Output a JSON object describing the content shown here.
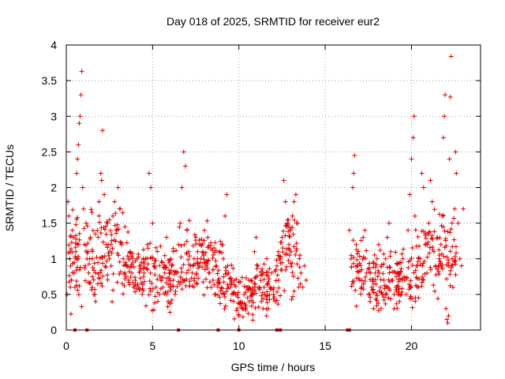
{
  "chart_data": {
    "type": "scatter",
    "title": "Day 018 of 2025, SRMTID for receiver eur2",
    "xlabel": "GPS time / hours",
    "ylabel": "SRMTID / TECUs",
    "xlim": [
      0,
      24
    ],
    "ylim": [
      0,
      4
    ],
    "xticks": [
      0,
      5,
      10,
      15,
      20
    ],
    "xtick_labels": [
      "0",
      "5",
      "10",
      "15",
      "20"
    ],
    "yticks": [
      0,
      0.5,
      1,
      1.5,
      2,
      2.5,
      3,
      3.5,
      4
    ],
    "ytick_labels": [
      "0",
      "0.5",
      "1",
      "1.5",
      "2",
      "2.5",
      "3",
      "3.5",
      "4"
    ],
    "grid": true,
    "marker": "+",
    "series": [
      {
        "name": "SRMTID",
        "color": "#e00000",
        "points": [
          [
            0.05,
            0.5
          ],
          [
            0.1,
            1.8
          ],
          [
            0.15,
            1.6
          ],
          [
            0.2,
            1.0
          ],
          [
            0.25,
            0.9
          ],
          [
            0.3,
            0.7
          ],
          [
            0.35,
            1.4
          ],
          [
            0.4,
            1.3
          ],
          [
            0.45,
            0.8
          ],
          [
            0.5,
            0.6
          ],
          [
            0.55,
            1.1
          ],
          [
            0.6,
            2.2
          ],
          [
            0.65,
            2.4
          ],
          [
            0.7,
            2.6
          ],
          [
            0.75,
            2.9
          ],
          [
            0.8,
            3.0
          ],
          [
            0.85,
            3.3
          ],
          [
            0.9,
            3.63
          ],
          [
            0.95,
            2.0
          ],
          [
            1.0,
            1.7
          ],
          [
            1.05,
            1.2
          ],
          [
            1.1,
            0.9
          ],
          [
            1.15,
            1.5
          ],
          [
            1.2,
            1.0
          ],
          [
            1.3,
            0.8
          ],
          [
            1.4,
            1.3
          ],
          [
            1.5,
            0.6
          ],
          [
            1.6,
            0.5
          ],
          [
            1.7,
            0.4
          ],
          [
            1.8,
            1.4
          ],
          [
            1.9,
            1.8
          ],
          [
            2.0,
            2.2
          ],
          [
            2.05,
            2.1
          ],
          [
            2.1,
            2.8
          ],
          [
            2.2,
            1.9
          ],
          [
            2.3,
            1.2
          ],
          [
            2.4,
            1.5
          ],
          [
            2.5,
            1.0
          ],
          [
            2.6,
            0.9
          ],
          [
            2.7,
            1.6
          ],
          [
            2.8,
            1.8
          ],
          [
            2.9,
            1.4
          ],
          [
            3.0,
            2.0
          ],
          [
            3.1,
            1.7
          ],
          [
            3.2,
            1.2
          ],
          [
            3.3,
            1.0
          ],
          [
            3.4,
            0.8
          ],
          [
            3.5,
            0.9
          ],
          [
            3.6,
            0.7
          ],
          [
            3.7,
            1.1
          ],
          [
            3.8,
            0.8
          ],
          [
            3.9,
            0.6
          ],
          [
            4.0,
            0.7
          ],
          [
            4.1,
            1.0
          ],
          [
            4.2,
            0.6
          ],
          [
            4.3,
            0.9
          ],
          [
            4.4,
            0.5
          ],
          [
            4.5,
            0.8
          ],
          [
            4.6,
            1.0
          ],
          [
            4.7,
            1.2
          ],
          [
            4.8,
            2.2
          ],
          [
            4.9,
            2.0
          ],
          [
            5.0,
            1.5
          ],
          [
            5.1,
            0.9
          ],
          [
            5.2,
            0.6
          ],
          [
            5.3,
            0.4
          ],
          [
            5.4,
            0.5
          ],
          [
            5.5,
            0.7
          ],
          [
            5.6,
            0.6
          ],
          [
            5.7,
            0.8
          ],
          [
            5.8,
            0.5
          ],
          [
            5.9,
            0.4
          ],
          [
            6.0,
            0.6
          ],
          [
            6.1,
            0.9
          ],
          [
            6.2,
            0.7
          ],
          [
            6.3,
            0.5
          ],
          [
            6.4,
            0.8
          ],
          [
            6.5,
            1.2
          ],
          [
            6.6,
            1.5
          ],
          [
            6.7,
            2.0
          ],
          [
            6.8,
            2.5
          ],
          [
            6.9,
            2.3
          ],
          [
            7.0,
            1.4
          ],
          [
            7.1,
            1.1
          ],
          [
            7.2,
            0.9
          ],
          [
            7.3,
            0.8
          ],
          [
            7.4,
            1.0
          ],
          [
            7.5,
            1.3
          ],
          [
            7.6,
            1.0
          ],
          [
            7.7,
            0.9
          ],
          [
            7.8,
            1.2
          ],
          [
            7.9,
            1.1
          ],
          [
            8.0,
            1.4
          ],
          [
            8.1,
            0.9
          ],
          [
            8.2,
            1.3
          ],
          [
            8.3,
            0.8
          ],
          [
            8.4,
            0.6
          ],
          [
            8.5,
            0.7
          ],
          [
            8.6,
            0.5
          ],
          [
            8.7,
            0.9
          ],
          [
            8.8,
            0.7
          ],
          [
            8.9,
            1.1
          ],
          [
            9.0,
            1.2
          ],
          [
            9.1,
            1.0
          ],
          [
            9.2,
            1.6
          ],
          [
            9.3,
            1.9
          ],
          [
            9.4,
            0.8
          ],
          [
            9.5,
            0.6
          ],
          [
            9.6,
            0.5
          ],
          [
            9.7,
            0.4
          ],
          [
            9.8,
            0.5
          ],
          [
            9.9,
            0.3
          ],
          [
            10.0,
            0.2
          ],
          [
            10.1,
            0.4
          ],
          [
            10.2,
            0.3
          ],
          [
            10.3,
            0.5
          ],
          [
            10.4,
            0.35
          ],
          [
            10.5,
            0.6
          ],
          [
            10.6,
            0.4
          ],
          [
            10.7,
            0.7
          ],
          [
            10.8,
            0.5
          ],
          [
            10.9,
            1.1
          ],
          [
            11.0,
            1.3
          ],
          [
            11.1,
            0.9
          ],
          [
            11.2,
            0.6
          ],
          [
            11.3,
            0.4
          ],
          [
            11.4,
            0.3
          ],
          [
            11.5,
            0.5
          ],
          [
            11.6,
            0.2
          ],
          [
            11.7,
            0.3
          ],
          [
            11.8,
            0.6
          ],
          [
            11.9,
            0.8
          ],
          [
            12.0,
            0.5
          ],
          [
            12.1,
            0.4
          ],
          [
            12.2,
            0.9
          ],
          [
            12.3,
            0.7
          ],
          [
            12.4,
            1.0
          ],
          [
            12.5,
            1.3
          ],
          [
            12.6,
            2.1
          ],
          [
            12.7,
            1.8
          ],
          [
            12.8,
            1.5
          ],
          [
            12.9,
            1.2
          ],
          [
            13.0,
            1.4
          ],
          [
            13.1,
            1.6
          ],
          [
            13.2,
            1.8
          ],
          [
            13.3,
            1.9
          ],
          [
            13.4,
            1.5
          ],
          [
            13.5,
            1.0
          ],
          [
            13.6,
            0.8
          ],
          [
            13.7,
            0.6
          ],
          [
            13.8,
            0.9
          ],
          [
            13.9,
            0.7
          ],
          [
            16.4,
            1.4
          ],
          [
            16.5,
            1.0
          ],
          [
            16.6,
            2.0
          ],
          [
            16.65,
            2.2
          ],
          [
            16.7,
            2.45
          ],
          [
            16.8,
            1.2
          ],
          [
            16.9,
            0.9
          ],
          [
            17.0,
            0.7
          ],
          [
            17.1,
            0.6
          ],
          [
            17.2,
            1.3
          ],
          [
            17.3,
            1.4
          ],
          [
            17.4,
            0.8
          ],
          [
            17.5,
            0.5
          ],
          [
            17.6,
            0.4
          ],
          [
            17.7,
            0.6
          ],
          [
            17.8,
            0.3
          ],
          [
            17.9,
            0.8
          ],
          [
            18.0,
            1.0
          ],
          [
            18.1,
            1.2
          ],
          [
            18.2,
            0.6
          ],
          [
            18.3,
            0.5
          ],
          [
            18.4,
            0.7
          ],
          [
            18.5,
            1.0
          ],
          [
            18.6,
            1.3
          ],
          [
            18.7,
            1.5
          ],
          [
            18.8,
            1.1
          ],
          [
            18.9,
            0.7
          ],
          [
            19.0,
            0.5
          ],
          [
            19.1,
            0.6
          ],
          [
            19.2,
            0.8
          ],
          [
            19.3,
            0.4
          ],
          [
            19.4,
            0.5
          ],
          [
            19.5,
            1.0
          ],
          [
            19.6,
            0.7
          ],
          [
            19.7,
            0.5
          ],
          [
            19.8,
            1.4
          ],
          [
            19.9,
            1.9
          ],
          [
            20.0,
            2.4
          ],
          [
            20.1,
            2.7
          ],
          [
            20.15,
            3.0
          ],
          [
            20.2,
            1.6
          ],
          [
            20.3,
            0.9
          ],
          [
            20.4,
            0.6
          ],
          [
            20.5,
            1.0
          ],
          [
            20.6,
            2.2
          ],
          [
            20.7,
            2.0
          ],
          [
            20.8,
            1.2
          ],
          [
            20.9,
            0.8
          ],
          [
            21.0,
            1.5
          ],
          [
            21.1,
            2.1
          ],
          [
            21.2,
            1.8
          ],
          [
            21.3,
            1.1
          ],
          [
            21.4,
            0.9
          ],
          [
            21.5,
            1.3
          ],
          [
            21.6,
            1.0
          ],
          [
            21.7,
            1.2
          ],
          [
            21.8,
            1.6
          ],
          [
            21.85,
            2.7
          ],
          [
            21.9,
            3.0
          ],
          [
            21.95,
            3.3
          ],
          [
            22.0,
            0.3
          ],
          [
            22.05,
            0.15
          ],
          [
            22.1,
            0.1
          ],
          [
            22.15,
            0.2
          ],
          [
            22.2,
            2.4
          ],
          [
            22.25,
            3.27
          ],
          [
            22.3,
            3.84
          ],
          [
            22.35,
            1.0
          ],
          [
            22.4,
            0.6
          ],
          [
            22.5,
            1.7
          ],
          [
            22.55,
            2.5
          ],
          [
            22.6,
            2.2
          ],
          [
            22.7,
            1.5
          ],
          [
            22.8,
            1.0
          ],
          [
            22.9,
            0.9
          ],
          [
            23.0,
            1.7
          ]
        ],
        "band_centers": [
          [
            0.1,
            1.05,
            0.38
          ],
          [
            1.1,
            1.0,
            0.35
          ],
          [
            2.0,
            1.15,
            0.38
          ],
          [
            3.0,
            1.2,
            0.38
          ],
          [
            4.0,
            0.8,
            0.22
          ],
          [
            5.0,
            0.8,
            0.28
          ],
          [
            6.0,
            0.8,
            0.28
          ],
          [
            7.0,
            1.0,
            0.3
          ],
          [
            8.0,
            1.0,
            0.3
          ],
          [
            9.0,
            0.8,
            0.3
          ],
          [
            9.7,
            0.55,
            0.2
          ],
          [
            10.4,
            0.45,
            0.2
          ],
          [
            11.2,
            0.6,
            0.25
          ],
          [
            12.0,
            0.6,
            0.28
          ],
          [
            12.8,
            1.2,
            0.35
          ],
          [
            13.6,
            0.9,
            0.3
          ],
          [
            16.5,
            0.9,
            0.3
          ],
          [
            17.3,
            0.75,
            0.25
          ],
          [
            18.2,
            0.65,
            0.22
          ],
          [
            19.2,
            0.7,
            0.25
          ],
          [
            20.2,
            0.75,
            0.3
          ],
          [
            21.2,
            1.1,
            0.35
          ],
          [
            21.8,
            1.1,
            0.3
          ],
          [
            22.6,
            1.05,
            0.3
          ]
        ],
        "zero_points": [
          0.5,
          1.2,
          6.5,
          8.8,
          10.0,
          12.2,
          12.4,
          16.3,
          16.4
        ]
      }
    ]
  }
}
